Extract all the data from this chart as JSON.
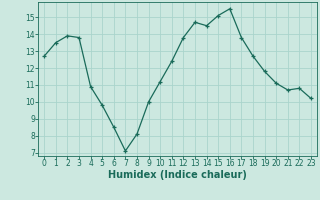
{
  "xlabel": "Humidex (Indice chaleur)",
  "background_color": "#cce8e0",
  "line_color": "#1a6b5a",
  "grid_color": "#aad4cc",
  "marker": "+",
  "x": [
    0,
    1,
    2,
    3,
    4,
    5,
    6,
    7,
    8,
    9,
    10,
    11,
    12,
    13,
    14,
    15,
    16,
    17,
    18,
    19,
    20,
    21,
    22,
    23
  ],
  "y": [
    12.7,
    13.5,
    13.9,
    13.8,
    10.9,
    9.8,
    8.5,
    7.1,
    8.1,
    10.0,
    11.2,
    12.4,
    13.8,
    14.7,
    14.5,
    15.1,
    15.5,
    13.8,
    12.7,
    11.8,
    11.1,
    10.7,
    10.8,
    10.2
  ],
  "ylim": [
    6.8,
    15.9
  ],
  "yticks": [
    7,
    8,
    9,
    10,
    11,
    12,
    13,
    14,
    15
  ],
  "xlim": [
    -0.5,
    23.5
  ],
  "marker_size": 3.5,
  "linewidth": 0.9,
  "tick_fontsize": 5.5,
  "xlabel_fontsize": 7.0
}
